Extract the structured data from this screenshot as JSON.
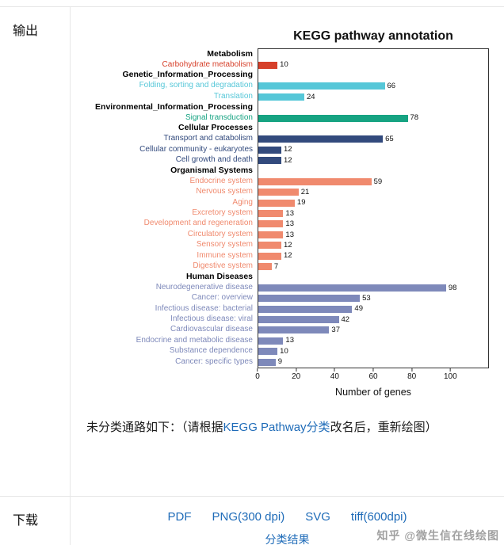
{
  "page": {
    "rows": {
      "output_label": "输出",
      "download_label": "下载"
    },
    "note": {
      "text_before": "未分类通路如下：（请根据",
      "link_text": "KEGG Pathway分类",
      "text_after": "改名后，重新绘图）"
    },
    "downloads": {
      "links": [
        "PDF",
        "PNG(300 dpi)",
        "SVG",
        "tiff(600dpi)"
      ],
      "result_link": "分类结果"
    },
    "watermark": "知乎 @微生信在线绘图",
    "colors": {
      "link_blue": "#1e6bb8",
      "border_gray": "#e6e6e6",
      "watermark_gray": "#8a8a8a"
    }
  },
  "chart_data": {
    "type": "bar",
    "orientation": "horizontal",
    "title": "KEGG pathway annotation",
    "xlabel": "Number of genes",
    "xlim": [
      0,
      120
    ],
    "xticks": [
      0,
      20,
      40,
      60,
      80,
      100
    ],
    "grid": false,
    "groups": [
      {
        "name": "Metabolism",
        "color": "#d6402a",
        "items": [
          {
            "label": "Carbohydrate metabolism",
            "value": 10
          }
        ]
      },
      {
        "name": "Genetic_Information_Processing",
        "color": "#56c7d8",
        "items": [
          {
            "label": "Folding, sorting and degradation",
            "value": 66
          },
          {
            "label": "Translation",
            "value": 24
          }
        ]
      },
      {
        "name": "Environmental_Information_Processing",
        "color": "#16a382",
        "items": [
          {
            "label": "Signal transduction",
            "value": 78
          }
        ]
      },
      {
        "name": "Cellular Processes",
        "color": "#324a7d",
        "items": [
          {
            "label": "Transport and catabolism",
            "value": 65
          },
          {
            "label": "Cellular community - eukaryotes",
            "value": 12
          },
          {
            "label": "Cell growth and death",
            "value": 12
          }
        ]
      },
      {
        "name": "Organismal Systems",
        "color": "#f08a6e",
        "items": [
          {
            "label": "Endocrine system",
            "value": 59
          },
          {
            "label": "Nervous system",
            "value": 21
          },
          {
            "label": "Aging",
            "value": 19
          },
          {
            "label": "Excretory system",
            "value": 13
          },
          {
            "label": "Development and regeneration",
            "value": 13
          },
          {
            "label": "Circulatory system",
            "value": 13
          },
          {
            "label": "Sensory system",
            "value": 12
          },
          {
            "label": "Immune system",
            "value": 12
          },
          {
            "label": "Digestive system",
            "value": 7
          }
        ]
      },
      {
        "name": "Human Diseases",
        "color": "#7e89ba",
        "items": [
          {
            "label": "Neurodegenerative disease",
            "value": 98
          },
          {
            "label": "Cancer: overview",
            "value": 53
          },
          {
            "label": "Infectious disease: bacterial",
            "value": 49
          },
          {
            "label": "Infectious disease: viral",
            "value": 42
          },
          {
            "label": "Cardiovascular disease",
            "value": 37
          },
          {
            "label": "Endocrine and metabolic disease",
            "value": 13
          },
          {
            "label": "Substance dependence",
            "value": 10
          },
          {
            "label": "Cancer: specific types",
            "value": 9
          }
        ]
      }
    ]
  }
}
